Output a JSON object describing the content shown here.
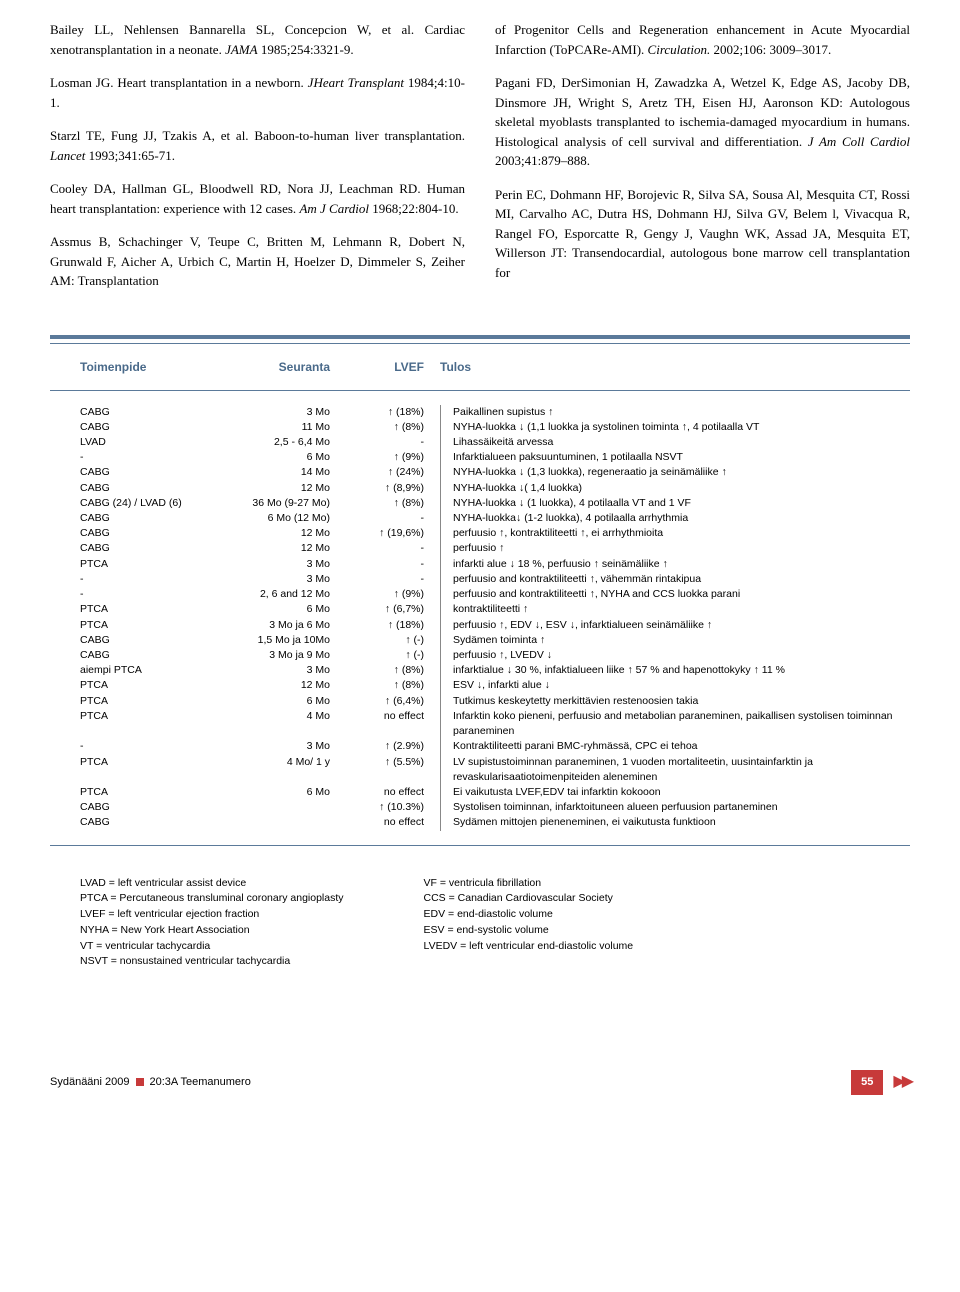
{
  "references": {
    "left": [
      "Bailey LL, Nehlensen Bannarella SL, Concepcion W, et al. Cardiac xenotransplantation in a neonate. <em>JAMA</em> 1985;254:3321-9.",
      "Losman JG. Heart transplantation in a newborn. <em>JHeart Transplant</em> 1984;4:10-1.",
      "Starzl TE, Fung JJ, Tzakis A, et al. Baboon-to-human liver transplantation. <em>Lancet</em> 1993;341:65-71.",
      "Cooley DA, Hallman GL, Bloodwell RD, Nora JJ, Leachman RD. Human heart transplantation: experience with 12 cases. <em>Am J Cardiol</em> 1968;22:804-10.",
      "Assmus B, Schachinger V, Teupe C, Britten M, Lehmann R, Dobert N, Grunwald F, Aicher A, Urbich C, Martin H, Hoelzer D, Dimmeler S, Zeiher AM: Transplantation"
    ],
    "right": [
      "of Progenitor Cells and Regeneration enhancement in Acute Myocardial Infarction (ToPCARe-AMI). <em>Circulation.</em> 2002;106: 3009–3017.",
      "Pagani FD, DerSimonian H, Zawadzka A, Wetzel K, Edge AS, Jacoby DB, Dinsmore JH, Wright S, Aretz TH, Eisen HJ, Aaronson KD: Autologous skeletal myoblasts transplanted to ischemia-damaged myocardium in humans. Histological analysis of cell survival and differentiation. <em>J Am Coll Cardiol</em> 2003;41:879–888.",
      "Perin EC, Dohmann HF, Borojevic R, Silva SA, Sousa Al, Mesquita CT, Rossi MI, Carvalho AC, Dutra HS, Dohmann HJ, Silva GV, Belem l, Vivacqua R, Rangel FO, Esporcatte R, Gengy J, Vaughn WK, Assad JA, Mesquita ET, Willerson JT: Transendocardial, autologous bone marrow cell transplantation for"
    ]
  },
  "table": {
    "headers": {
      "c1": "Toimenpide",
      "c2": "Seuranta",
      "c3": "LVEF",
      "c4": "Tulos"
    },
    "rows": [
      {
        "c1": "CABG",
        "c2": "3 Mo",
        "c3": "↑ (18%)",
        "c4": "Paikallinen supistus ↑"
      },
      {
        "c1": "CABG",
        "c2": "11 Mo",
        "c3": "↑ (8%)",
        "c4": "NYHA-luokka ↓ (1,1 luokka ja systolinen toiminta ↑, 4 potilaalla VT"
      },
      {
        "c1": "LVAD",
        "c2": "2,5 - 6,4 Mo",
        "c3": "-",
        "c4": "Lihassäikeitä arvessa"
      },
      {
        "c1": "-",
        "c2": "6 Mo",
        "c3": "↑ (9%)",
        "c4": "Infarktialueen paksuuntuminen, 1 potilaalla NSVT"
      },
      {
        "c1": "CABG",
        "c2": "14 Mo",
        "c3": "↑ (24%)",
        "c4": "NYHA-luokka ↓ (1,3 luokka), regeneraatio ja seinämäliike ↑"
      },
      {
        "c1": "CABG",
        "c2": "12 Mo",
        "c3": "↑ (8,9%)",
        "c4": "NYHA-luokka ↓( 1,4 luokka)"
      },
      {
        "c1": "CABG (24) / LVAD (6)",
        "c2": "36 Mo (9-27 Mo)",
        "c3": "↑ (8%)",
        "c4": "NYHA-luokka ↓ (1 luokka), 4 potilaalla VT and 1 VF"
      },
      {
        "c1": "CABG",
        "c2": "6 Mo (12 Mo)",
        "c3": "-",
        "c4": "NYHA-luokka↓ (1-2 luokka), 4 potilaalla arrhythmia"
      },
      {
        "c1": "CABG",
        "c2": "12 Mo",
        "c3": "↑ (19,6%)",
        "c4": "perfuusio ↑, kontraktiliteetti ↑, ei arrhythmioita"
      },
      {
        "c1": "CABG",
        "c2": "12 Mo",
        "c3": "-",
        "c4": "perfuusio ↑"
      },
      {
        "c1": "PTCA",
        "c2": "3 Mo",
        "c3": "-",
        "c4": "infarkti alue ↓ 18 %, perfuusio ↑ seinämäliike ↑"
      },
      {
        "c1": "-",
        "c2": "3 Mo",
        "c3": "-",
        "c4": "perfuusio and kontraktiliteetti ↑, vähemmän rintakipua"
      },
      {
        "c1": "-",
        "c2": "2, 6 and 12 Mo",
        "c3": "↑ (9%)",
        "c4": "perfuusio and kontraktiliteetti ↑, NYHA and CCS luokka parani"
      },
      {
        "c1": "PTCA",
        "c2": "6 Mo",
        "c3": "↑ (6,7%)",
        "c4": "kontraktiliteetti ↑"
      },
      {
        "c1": "PTCA",
        "c2": "3 Mo ja 6 Mo",
        "c3": "↑ (18%)",
        "c4": "perfuusio ↑, EDV ↓, ESV ↓, infarktialueen seinämäliike ↑"
      },
      {
        "c1": "CABG",
        "c2": "1,5 Mo ja 10Mo",
        "c3": "↑ (-)",
        "c4": "Sydämen toiminta ↑"
      },
      {
        "c1": "CABG",
        "c2": "3 Mo ja 9 Mo",
        "c3": "↑ (-)",
        "c4": "perfuusio ↑, LVEDV ↓"
      },
      {
        "c1": "aiempi PTCA",
        "c2": "3 Mo",
        "c3": "↑ (8%)",
        "c4": "infarktialue ↓ 30 %, infaktialueen liike ↑ 57 % and hapenottokyky ↑ 11 %"
      },
      {
        "c1": "PTCA",
        "c2": "12 Mo",
        "c3": "↑ (8%)",
        "c4": "ESV ↓, infarkti alue ↓"
      },
      {
        "c1": "PTCA",
        "c2": "6 Mo",
        "c3": "↑ (6,4%)",
        "c4": "Tutkimus keskeytetty merkittävien restenoosien takia"
      },
      {
        "c1": "PTCA",
        "c2": "4 Mo",
        "c3": "no effect",
        "c4": "Infarktin koko pieneni, perfuusio and metabolian paraneminen, paikallisen systolisen toiminnan paraneminen"
      },
      {
        "c1": "-",
        "c2": "3 Mo",
        "c3": "↑ (2.9%)",
        "c4": "Kontraktiliteetti parani BMC-ryhmässä, CPC ei tehoa"
      },
      {
        "c1": "PTCA",
        "c2": "4 Mo/ 1 y",
        "c3": "↑ (5.5%)",
        "c4": "LV supistustoiminnan paraneminen, 1 vuoden  mortaliteetin, uusintainfarktin ja revaskularisaatiotoimenpiteiden aleneminen"
      },
      {
        "c1": "PTCA",
        "c2": "6 Mo",
        "c3": "no effect",
        "c4": "Ei vaikutusta LVEF,EDV tai infarktin kokooon"
      },
      {
        "c1": "CABG",
        "c2": "",
        "c3": "↑ (10.3%)",
        "c4": "Systolisen toiminnan, infarktoituneen alueen perfuusion partaneminen"
      },
      {
        "c1": "CABG",
        "c2": "",
        "c3": "no effect",
        "c4": "Sydämen mittojen pieneneminen, ei vaikutusta funktioon"
      }
    ]
  },
  "abbrev": {
    "left": [
      "LVAD = left ventricular assist device",
      "PTCA = Percutaneous transluminal coronary angioplasty",
      "LVEF = left ventricular ejection fraction",
      "NYHA = New York Heart Association",
      "VT = ventricular tachycardia",
      "NSVT = nonsustained ventricular tachycardia"
    ],
    "right": [
      "VF = ventricula fibrillation",
      "CCS = Canadian Cardiovascular Society",
      "EDV = end-diastolic volume",
      "ESV = end-systolic volume",
      "LVEDV = left ventricular end-diastolic volume"
    ]
  },
  "footer": {
    "journal": "Sydänääni 2009",
    "issue": "20:3A Teemanumero",
    "page": "55"
  }
}
